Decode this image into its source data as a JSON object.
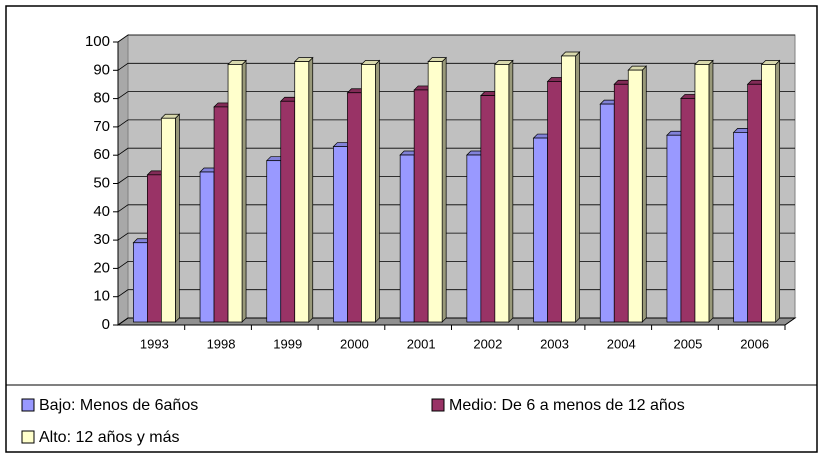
{
  "chart_data": {
    "type": "bar3d",
    "categories": [
      "1993",
      "1998",
      "1999",
      "2000",
      "2001",
      "2002",
      "2003",
      "2004",
      "2005",
      "2006"
    ],
    "series": [
      {
        "name": "Bajo: Menos de 6años",
        "color": "#9999ff",
        "values": [
          28,
          53,
          57,
          62,
          59,
          59,
          65,
          77,
          66,
          67
        ]
      },
      {
        "name": "Medio: De 6 a menos de 12 años",
        "color": "#993366",
        "values": [
          52,
          76,
          78,
          81,
          82,
          80,
          85,
          84,
          79,
          84
        ]
      },
      {
        "name": "Alto: 12 años y más",
        "color": "#ffffcc",
        "values": [
          72,
          91,
          92,
          91,
          92,
          91,
          94,
          89,
          91,
          91
        ]
      }
    ],
    "ylim": [
      0,
      100
    ],
    "yticks": [
      0,
      10,
      20,
      30,
      40,
      50,
      60,
      70,
      80,
      90,
      100
    ],
    "grid": true
  }
}
